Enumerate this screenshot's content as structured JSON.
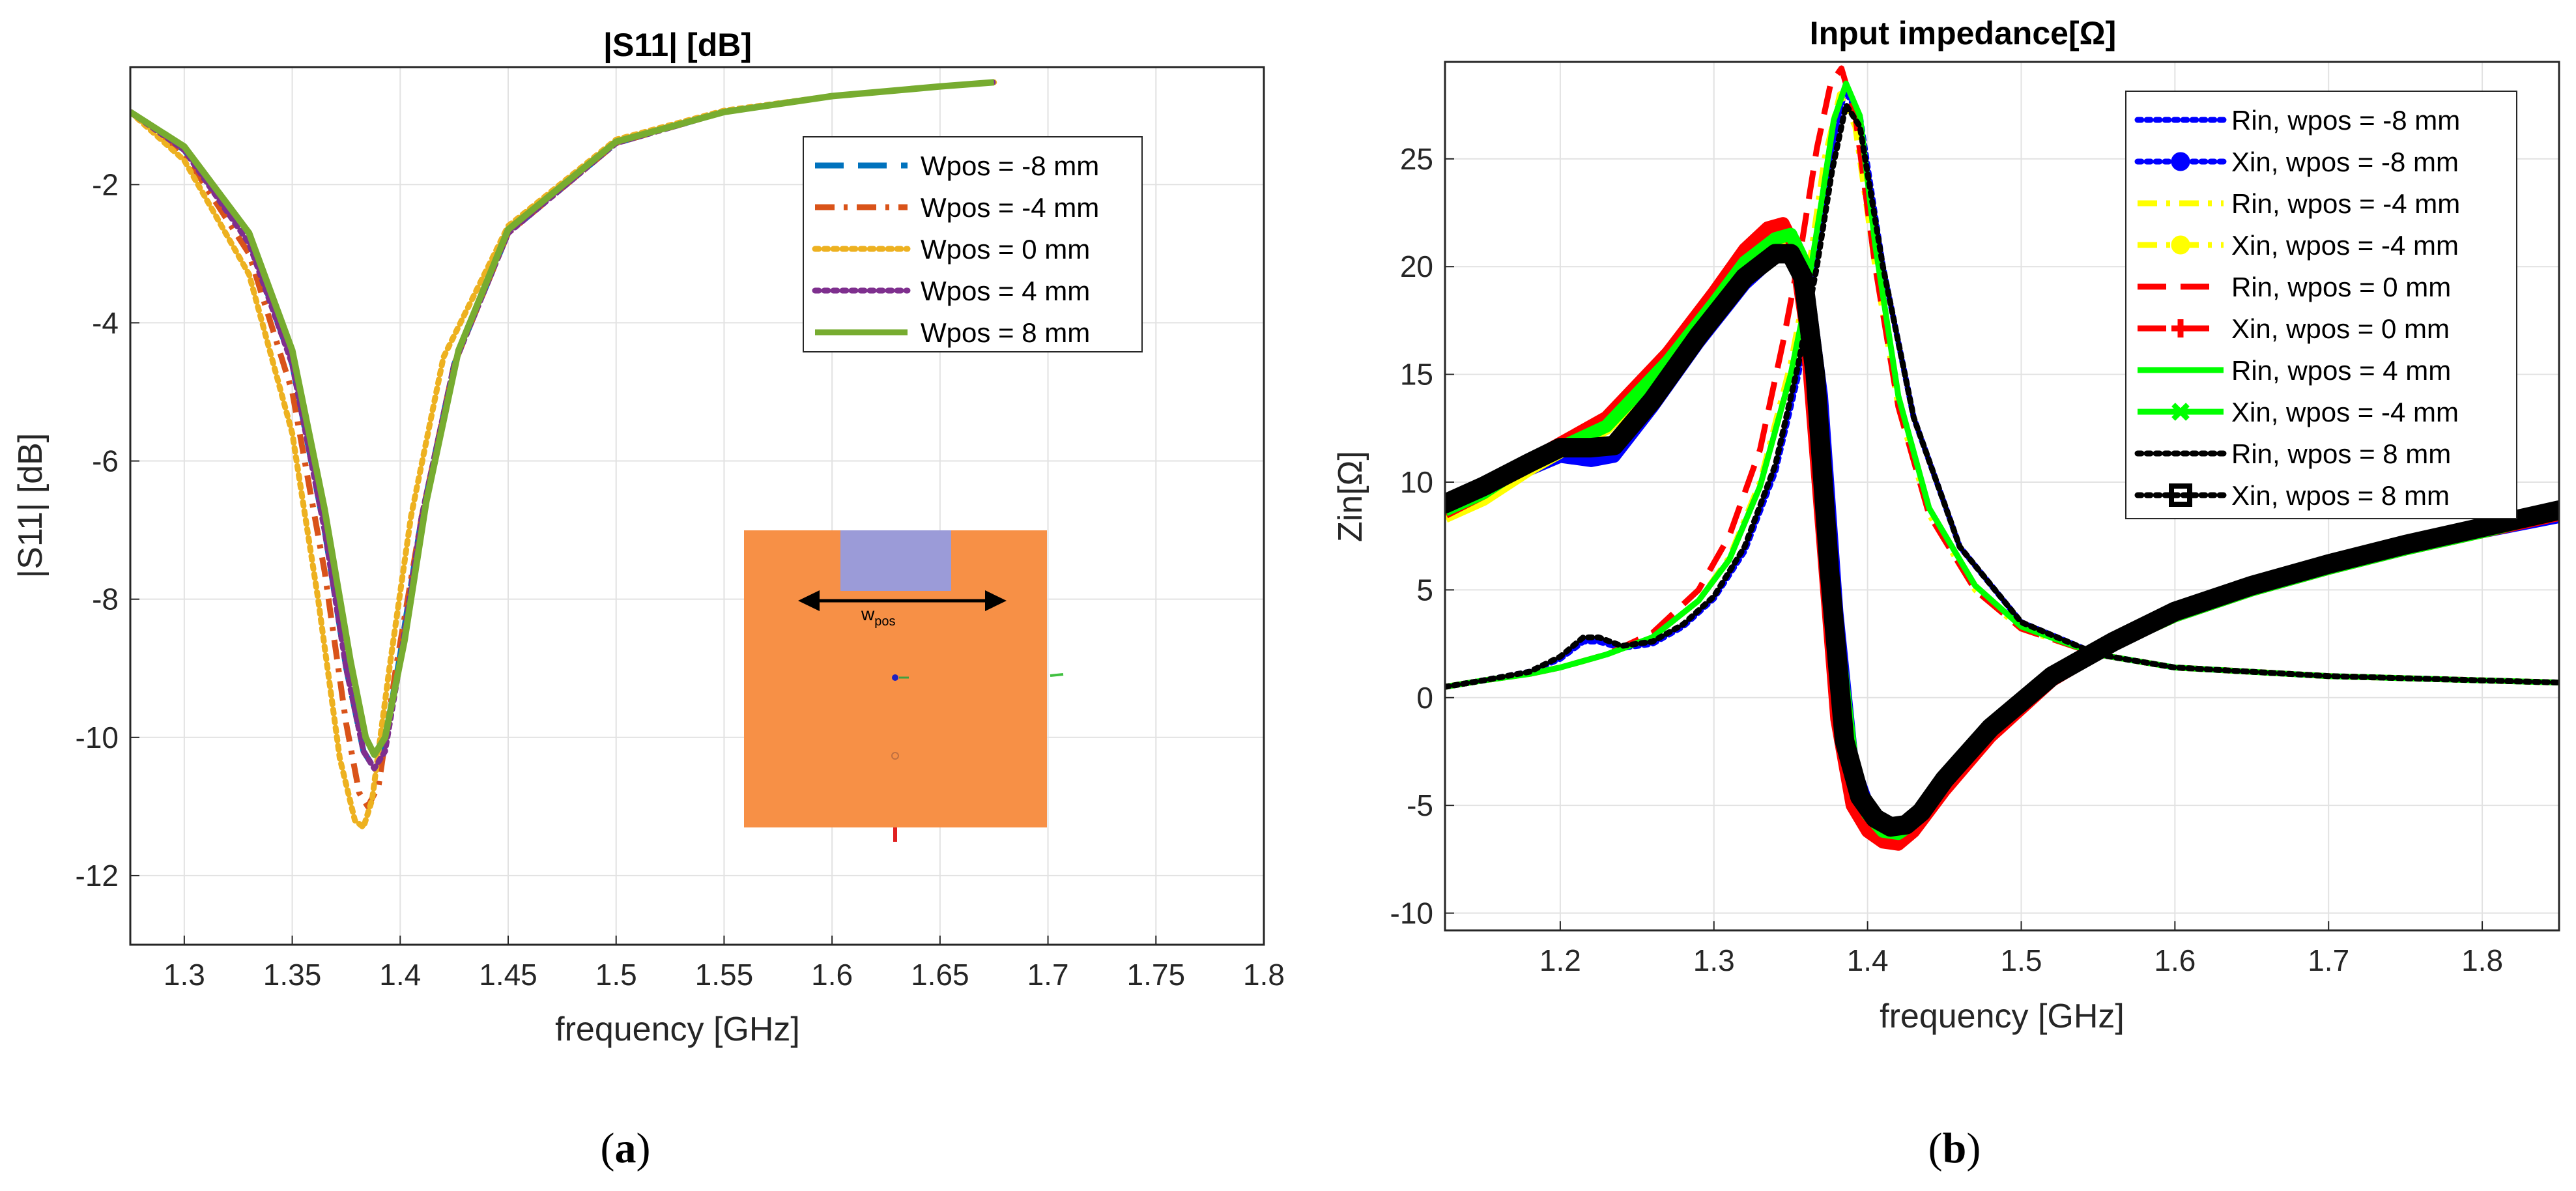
{
  "chart_data": [
    {
      "type": "line",
      "title": "|S11| [dB]",
      "xlabel": "frequency [GHz]",
      "ylabel": "|S11| [dB]",
      "xlim": [
        1.275,
        1.8
      ],
      "ylim": [
        -13,
        -0.3
      ],
      "xticks": [
        "1.3",
        "1.35",
        "1.4",
        "1.45",
        "1.5",
        "1.55",
        "1.6",
        "1.65",
        "1.7",
        "1.75",
        "1.8"
      ],
      "yticks": [
        "-2",
        "-4",
        "-6",
        "-8",
        "-10",
        "-12"
      ],
      "grid": true,
      "legend_position": "top-right",
      "series": [
        {
          "name": "Wpos = -8 mm",
          "color": "#0072BD",
          "style": "dashed",
          "x": [
            1.275,
            1.3,
            1.33,
            1.35,
            1.365,
            1.375,
            1.383,
            1.387,
            1.392,
            1.4,
            1.41,
            1.425,
            1.45,
            1.5,
            1.55,
            1.6,
            1.65,
            1.675
          ],
          "y": [
            -0.95,
            -1.5,
            -2.8,
            -4.6,
            -7,
            -9,
            -10.2,
            -10.4,
            -10.2,
            -8.8,
            -6.8,
            -4.6,
            -2.7,
            -1.4,
            -0.95,
            -0.72,
            -0.58,
            -0.52
          ]
        },
        {
          "name": "Wpos = -4 mm",
          "color": "#D95319",
          "style": "dashdot",
          "x": [
            1.275,
            1.3,
            1.33,
            1.35,
            1.365,
            1.375,
            1.381,
            1.385,
            1.39,
            1.398,
            1.41,
            1.425,
            1.45,
            1.5,
            1.55,
            1.6,
            1.65,
            1.675
          ],
          "y": [
            -0.95,
            -1.55,
            -3,
            -5,
            -7.6,
            -9.8,
            -10.8,
            -11,
            -10.7,
            -9,
            -6.8,
            -4.6,
            -2.7,
            -1.4,
            -0.95,
            -0.72,
            -0.58,
            -0.52
          ]
        },
        {
          "name": "Wpos = 0 mm",
          "color": "#EDB120",
          "style": "dotted",
          "x": [
            1.275,
            1.3,
            1.33,
            1.35,
            1.362,
            1.372,
            1.379,
            1.383,
            1.387,
            1.395,
            1.405,
            1.42,
            1.45,
            1.5,
            1.55,
            1.6,
            1.65,
            1.675
          ],
          "y": [
            -0.95,
            -1.65,
            -3.3,
            -5.6,
            -8,
            -10.3,
            -11.2,
            -11.3,
            -10.9,
            -9,
            -6.8,
            -4.5,
            -2.6,
            -1.35,
            -0.93,
            -0.72,
            -0.58,
            -0.52
          ]
        },
        {
          "name": "Wpos = 4 mm",
          "color": "#7E2F8E",
          "style": "dotted",
          "x": [
            1.275,
            1.3,
            1.33,
            1.35,
            1.365,
            1.375,
            1.383,
            1.388,
            1.393,
            1.4,
            1.41,
            1.425,
            1.45,
            1.5,
            1.55,
            1.6,
            1.65,
            1.675
          ],
          "y": [
            -0.95,
            -1.5,
            -2.85,
            -4.6,
            -7,
            -9,
            -10.2,
            -10.45,
            -10.2,
            -8.9,
            -6.8,
            -4.6,
            -2.7,
            -1.4,
            -0.95,
            -0.72,
            -0.58,
            -0.52
          ]
        },
        {
          "name": "Wpos = 8 mm",
          "color": "#77AC30",
          "style": "solid",
          "x": [
            1.275,
            1.3,
            1.33,
            1.35,
            1.365,
            1.377,
            1.384,
            1.388,
            1.393,
            1.402,
            1.412,
            1.427,
            1.45,
            1.5,
            1.55,
            1.6,
            1.65,
            1.675
          ],
          "y": [
            -0.95,
            -1.45,
            -2.7,
            -4.4,
            -6.7,
            -8.9,
            -10,
            -10.25,
            -10,
            -8.6,
            -6.6,
            -4.4,
            -2.65,
            -1.38,
            -0.95,
            -0.72,
            -0.58,
            -0.52
          ]
        }
      ]
    },
    {
      "type": "line",
      "title": "Input impedance[Ω]",
      "xlabel": "frequency [GHz]",
      "ylabel": "Zin[Ω]",
      "xlim": [
        1.125,
        1.85
      ],
      "ylim": [
        -10.8,
        29.5
      ],
      "xticks": [
        "1.2",
        "1.3",
        "1.4",
        "1.5",
        "1.6",
        "1.7",
        "1.8"
      ],
      "yticks": [
        "25",
        "20",
        "15",
        "10",
        "5",
        "0",
        "-5",
        "-10"
      ],
      "grid": true,
      "legend_position": "top-right",
      "series": [
        {
          "name": "Rin, wpos = -8 mm",
          "color": "#0000FF",
          "style": "dotted",
          "x": [
            1.125,
            1.15,
            1.18,
            1.2,
            1.215,
            1.225,
            1.24,
            1.26,
            1.28,
            1.3,
            1.32,
            1.34,
            1.355,
            1.365,
            1.375,
            1.385,
            1.395,
            1.41,
            1.43,
            1.46,
            1.5,
            1.55,
            1.6,
            1.7,
            1.85
          ],
          "y": [
            0.5,
            0.8,
            1.2,
            1.8,
            2.6,
            2.6,
            2.3,
            2.5,
            3.3,
            4.6,
            6.8,
            10.5,
            15,
            19.5,
            24.5,
            28.2,
            27,
            20,
            13,
            7,
            3.5,
            2,
            1.4,
            1,
            0.7
          ]
        },
        {
          "name": "Xin, wpos = -8 mm",
          "color": "#0000FF",
          "style": "dotted-marker-circle",
          "x": [
            1.125,
            1.15,
            1.18,
            1.2,
            1.22,
            1.235,
            1.26,
            1.29,
            1.32,
            1.34,
            1.35,
            1.36,
            1.37,
            1.38,
            1.39,
            1.4,
            1.41,
            1.42,
            1.43,
            1.45,
            1.48,
            1.52,
            1.56,
            1.6,
            1.65,
            1.7,
            1.75,
            1.8,
            1.85
          ],
          "y": [
            8.8,
            9.5,
            10.6,
            11.2,
            11,
            11.2,
            13.5,
            16.5,
            19.2,
            20.5,
            20.6,
            19.5,
            14,
            4,
            -3,
            -5,
            -5.8,
            -6,
            -5.6,
            -4,
            -1.6,
            0.9,
            2.5,
            3.8,
            5,
            6,
            6.9,
            7.7,
            8.4
          ]
        },
        {
          "name": "Rin, wpos = -4 mm",
          "color": "#FFFF00",
          "style": "dashdot",
          "x": [
            1.125,
            1.15,
            1.18,
            1.2,
            1.23,
            1.26,
            1.29,
            1.31,
            1.33,
            1.35,
            1.362,
            1.372,
            1.382,
            1.392,
            1.405,
            1.42,
            1.44,
            1.47,
            1.5,
            1.55,
            1.6,
            1.7,
            1.85
          ],
          "y": [
            0.5,
            0.8,
            1.1,
            1.4,
            2,
            2.8,
            4.5,
            6.5,
            10,
            15.5,
            20,
            25,
            28,
            26.5,
            20,
            13.5,
            8.5,
            5,
            3.2,
            2,
            1.4,
            1,
            0.7
          ]
        },
        {
          "name": "Xin, wpos = -4 mm",
          "color": "#FFFF00",
          "style": "dashdot-marker-circle",
          "x": [
            1.125,
            1.15,
            1.18,
            1.2,
            1.23,
            1.27,
            1.3,
            1.32,
            1.34,
            1.35,
            1.358,
            1.368,
            1.378,
            1.39,
            1.4,
            1.41,
            1.42,
            1.43,
            1.45,
            1.48,
            1.52,
            1.56,
            1.6,
            1.65,
            1.7,
            1.75,
            1.8,
            1.85
          ],
          "y": [
            8.4,
            9.2,
            10.6,
            11.4,
            12.5,
            15.5,
            18,
            19.8,
            21,
            21.2,
            20,
            14,
            4,
            -3.5,
            -5.5,
            -6.2,
            -6.3,
            -5.8,
            -4,
            -1.6,
            0.9,
            2.5,
            3.8,
            5,
            6,
            6.9,
            7.7,
            8.6
          ]
        },
        {
          "name": "Rin, wpos = 0 mm",
          "color": "#FF0000",
          "style": "dashed",
          "x": [
            1.125,
            1.15,
            1.18,
            1.2,
            1.23,
            1.26,
            1.29,
            1.31,
            1.33,
            1.345,
            1.357,
            1.367,
            1.376,
            1.383,
            1.392,
            1.405,
            1.42,
            1.44,
            1.47,
            1.5,
            1.55,
            1.6,
            1.7,
            1.85
          ],
          "y": [
            0.5,
            0.8,
            1.1,
            1.4,
            2,
            3,
            5,
            7.5,
            11.5,
            16.5,
            21,
            25.5,
            28.5,
            29.2,
            27,
            20,
            13.5,
            8.5,
            5,
            3.2,
            2,
            1.4,
            1,
            0.7
          ]
        },
        {
          "name": "Xin, wpos = 0 mm",
          "color": "#FF0000",
          "style": "dashed-marker-plus",
          "x": [
            1.125,
            1.15,
            1.18,
            1.2,
            1.23,
            1.27,
            1.3,
            1.32,
            1.335,
            1.345,
            1.352,
            1.36,
            1.37,
            1.38,
            1.39,
            1.4,
            1.41,
            1.42,
            1.43,
            1.45,
            1.48,
            1.52,
            1.56,
            1.6,
            1.65,
            1.7,
            1.75,
            1.8,
            1.85
          ],
          "y": [
            8.6,
            9.5,
            11,
            11.8,
            13,
            16,
            18.8,
            20.8,
            21.8,
            22,
            21,
            17,
            8,
            -1,
            -5,
            -6.2,
            -6.7,
            -6.8,
            -6.2,
            -4.3,
            -1.8,
            0.8,
            2.5,
            3.8,
            5,
            6,
            6.9,
            7.7,
            8.5
          ]
        },
        {
          "name": "Rin, wpos = 4 mm",
          "color": "#00FF00",
          "style": "solid",
          "x": [
            1.125,
            1.15,
            1.18,
            1.2,
            1.23,
            1.26,
            1.29,
            1.31,
            1.33,
            1.35,
            1.36,
            1.37,
            1.378,
            1.386,
            1.395,
            1.405,
            1.42,
            1.44,
            1.47,
            1.5,
            1.55,
            1.6,
            1.7,
            1.85
          ],
          "y": [
            0.5,
            0.8,
            1.1,
            1.4,
            2,
            2.8,
            4.5,
            6.4,
            9.8,
            15,
            18.5,
            23,
            26.8,
            28.5,
            27,
            21,
            14,
            8.8,
            5.2,
            3.3,
            2,
            1.4,
            1,
            0.7
          ]
        },
        {
          "name": "Xin, wpos = -4 mm",
          "color": "#00FF00",
          "style": "solid-marker-x",
          "x": [
            1.125,
            1.15,
            1.18,
            1.2,
            1.23,
            1.27,
            1.3,
            1.32,
            1.34,
            1.35,
            1.358,
            1.368,
            1.378,
            1.39,
            1.4,
            1.41,
            1.42,
            1.43,
            1.45,
            1.48,
            1.52,
            1.56,
            1.6,
            1.65,
            1.7,
            1.75,
            1.8,
            1.85
          ],
          "y": [
            8.7,
            9.5,
            10.9,
            11.6,
            12.6,
            15.6,
            18.3,
            20.2,
            21.3,
            21.5,
            20.3,
            14.5,
            4.5,
            -3,
            -5.4,
            -6.2,
            -6.3,
            -5.8,
            -4,
            -1.6,
            0.9,
            2.5,
            3.8,
            5,
            6,
            6.9,
            7.7,
            8.6
          ]
        },
        {
          "name": "Rin, wpos = 8 mm",
          "color": "#000000",
          "style": "dotted",
          "x": [
            1.125,
            1.15,
            1.18,
            1.2,
            1.215,
            1.225,
            1.24,
            1.26,
            1.28,
            1.3,
            1.32,
            1.34,
            1.355,
            1.367,
            1.377,
            1.386,
            1.395,
            1.41,
            1.43,
            1.46,
            1.5,
            1.55,
            1.6,
            1.7,
            1.85
          ],
          "y": [
            0.5,
            0.8,
            1.2,
            1.9,
            2.8,
            2.8,
            2.4,
            2.6,
            3.4,
            4.7,
            7,
            10.8,
            15.5,
            20,
            24.5,
            27.5,
            26.5,
            20,
            13,
            7,
            3.5,
            2,
            1.4,
            1,
            0.7
          ]
        },
        {
          "name": "Xin, wpos = 8 mm",
          "color": "#000000",
          "style": "dotted-marker-square",
          "x": [
            1.125,
            1.15,
            1.18,
            1.2,
            1.22,
            1.235,
            1.26,
            1.29,
            1.32,
            1.34,
            1.35,
            1.358,
            1.366,
            1.375,
            1.385,
            1.395,
            1.405,
            1.415,
            1.425,
            1.435,
            1.45,
            1.48,
            1.52,
            1.56,
            1.6,
            1.65,
            1.7,
            1.75,
            1.8,
            1.85
          ],
          "y": [
            9,
            9.8,
            10.9,
            11.6,
            11.6,
            11.7,
            13.8,
            16.8,
            19.5,
            20.6,
            20.6,
            19.5,
            15,
            6,
            -2,
            -4.6,
            -5.6,
            -6,
            -5.9,
            -5.3,
            -3.8,
            -1.4,
            1,
            2.6,
            4,
            5.2,
            6.2,
            7.1,
            7.9,
            8.7
          ]
        }
      ]
    }
  ],
  "inset": {
    "label_main": "w",
    "label_sub": "pos"
  },
  "captions": {
    "a": "a",
    "b": "b"
  },
  "colors": {
    "inset_fill": "#F79046",
    "inset_slot": "#9B9BD8",
    "grid": "#E2E2E2",
    "axis": "#262626"
  }
}
